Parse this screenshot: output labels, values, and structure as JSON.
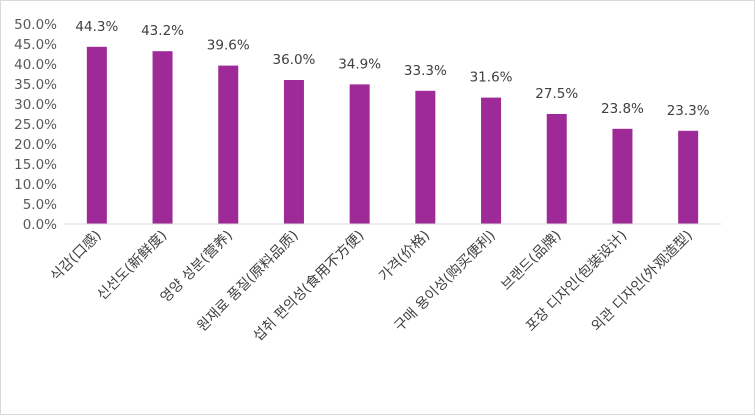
{
  "chart_data": {
    "type": "bar",
    "title": "",
    "xlabel": "",
    "ylabel": "",
    "categories": [
      "식감(口感)",
      "신선도(新鲜度)",
      "영양 성분(营养)",
      "원재료 품질(原料品质)",
      "섭취 편의성(食用不方便)",
      "가격(价格)",
      "구매 용이성(购买便利)",
      "브랜드(品牌)",
      "포장 디자인(包装设计)",
      "외관 디자인(外观造型)"
    ],
    "values": [
      44.3,
      43.2,
      39.6,
      36.0,
      34.9,
      33.3,
      31.6,
      27.5,
      23.8,
      23.3
    ],
    "value_labels": [
      "44.3%",
      "43.2%",
      "39.6%",
      "36.0%",
      "34.9%",
      "33.3%",
      "31.6%",
      "27.5%",
      "23.8%",
      "23.3%"
    ],
    "ylim": [
      0,
      50
    ],
    "yticks": [
      "0.0%",
      "5.0%",
      "10.0%",
      "15.0%",
      "20.0%",
      "25.0%",
      "30.0%",
      "35.0%",
      "40.0%",
      "45.0%",
      "50.0%"
    ],
    "grid": false,
    "legend": "none",
    "colors": {
      "bar": "#9E2A97",
      "axis": "#d9d9d9"
    }
  }
}
